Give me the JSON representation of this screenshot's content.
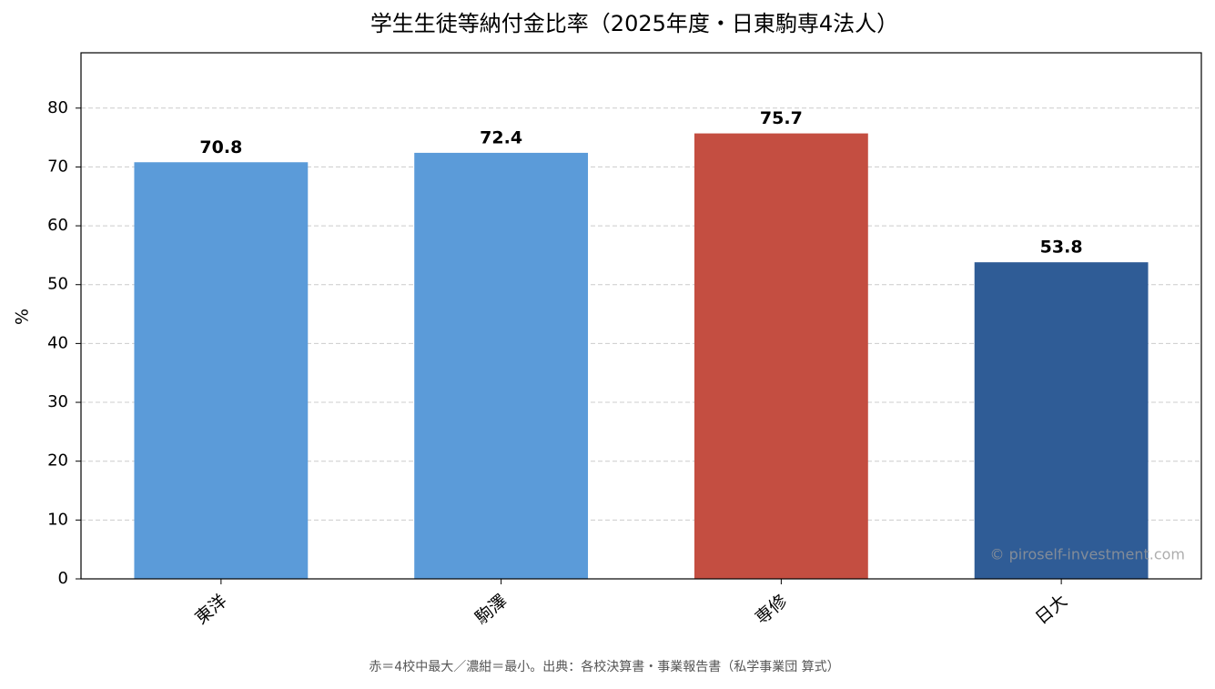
{
  "chart_data": {
    "type": "bar",
    "title": "学生生徒等納付金比率（2025年度・日東駒専4法人）",
    "y_label": "%",
    "categories": [
      "東洋",
      "駒澤",
      "専修",
      "日大"
    ],
    "values": [
      70.8,
      72.4,
      75.7,
      53.8
    ],
    "colors": [
      "#5b9bd9",
      "#5b9bd9",
      "#c44e41",
      "#2f5c96"
    ],
    "ylim": [
      0,
      89.4
    ],
    "yticks": [
      0,
      10,
      20,
      30,
      40,
      50,
      60,
      70,
      80
    ],
    "grid": true,
    "watermark": "© piroself-investment.com",
    "note": "赤＝4校中最大／濃紺＝最小。出典：各校決算書・事業報告書（私学事業団 算式）"
  }
}
